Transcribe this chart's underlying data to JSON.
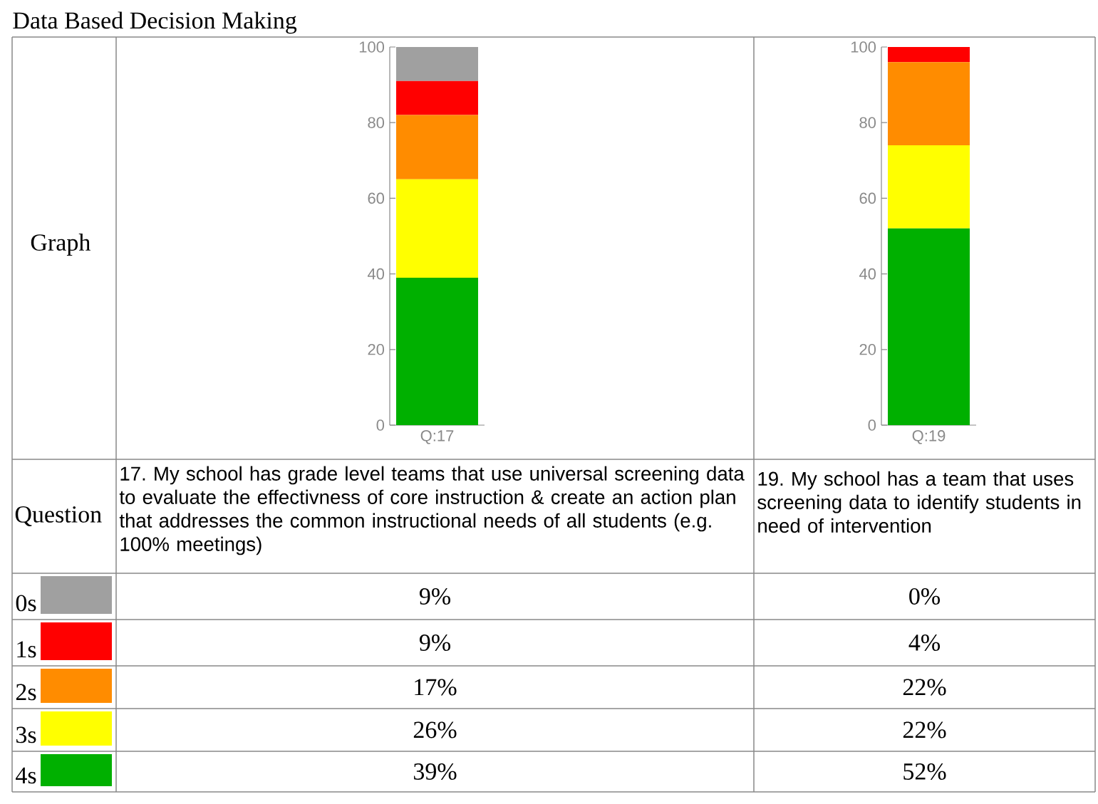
{
  "chart_data": [
    {
      "type": "bar",
      "stacked": true,
      "title": "Data Based Decision Making",
      "subtitle": "17. My school has grade level teams that use universal screening data to evaluate the effectivness of core instruction & create an action plan that addresses the common instructional needs of all students (e.g. 100% meetings)",
      "annotations": [
        "Graph",
        "Question",
        "9%",
        "9%",
        "17%",
        "26%",
        "39%"
      ],
      "categories": [
        "Q:17"
      ],
      "ylim": [
        0,
        100
      ],
      "yticks": [
        0,
        20,
        40,
        60,
        80,
        100
      ],
      "legend": "left",
      "series": [
        {
          "name": "4s",
          "color": "#00b000",
          "values": [
            39
          ]
        },
        {
          "name": "3s",
          "color": "#ffff00",
          "values": [
            26
          ]
        },
        {
          "name": "2s",
          "color": "#ff8c00",
          "values": [
            17
          ]
        },
        {
          "name": "1s",
          "color": "#ff0000",
          "values": [
            9
          ]
        },
        {
          "name": "0s",
          "color": "#a0a0a0",
          "values": [
            9
          ]
        }
      ]
    },
    {
      "type": "bar",
      "stacked": true,
      "subtitle": "19. My school has a team that uses screening data to identify students in need of intervention",
      "annotations": [
        "0%",
        "4%",
        "22%",
        "22%",
        "52%"
      ],
      "categories": [
        "Q:19"
      ],
      "ylim": [
        0,
        100
      ],
      "yticks": [
        0,
        20,
        40,
        60,
        80,
        100
      ],
      "series": [
        {
          "color": "#00b000",
          "values": [
            52
          ]
        },
        {
          "color": "#ffff00",
          "values": [
            22
          ]
        },
        {
          "color": "#ff8c00",
          "values": [
            22
          ]
        },
        {
          "color": "#ff0000",
          "values": [
            4
          ]
        },
        {
          "color": "#a0a0a0",
          "values": [
            0
          ]
        }
      ]
    }
  ]
}
